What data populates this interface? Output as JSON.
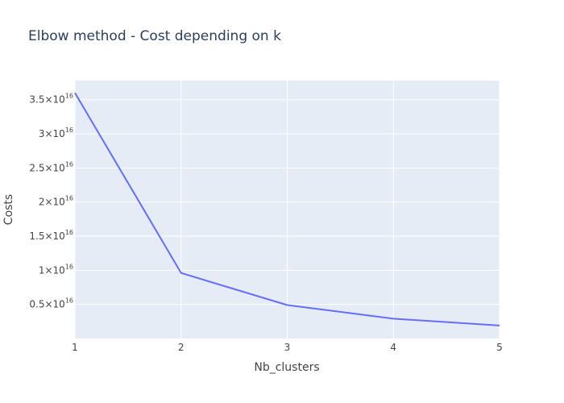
{
  "chart_data": {
    "type": "line",
    "title": "Elbow method - Cost depending on k",
    "xlabel": "Nb_clusters",
    "ylabel": "Costs",
    "x": [
      1,
      2,
      3,
      4,
      5
    ],
    "y": [
      3.6e+16,
      9600000000000000.0,
      4900000000000000.0,
      2900000000000000.0,
      1900000000000000.0
    ],
    "xlim": [
      1,
      5
    ],
    "ylim": [
      0.0,
      3.78e+16
    ],
    "x_ticks": [
      "1",
      "2",
      "3",
      "4",
      "5"
    ],
    "y_ticks": [
      {
        "value": 5000000000000000.0,
        "mantissa": "0.5×10",
        "exponent": "16"
      },
      {
        "value": 1e+16,
        "mantissa": "1×10",
        "exponent": "16"
      },
      {
        "value": 1.5e+16,
        "mantissa": "1.5×10",
        "exponent": "16"
      },
      {
        "value": 2e+16,
        "mantissa": "2×10",
        "exponent": "16"
      },
      {
        "value": 2.5e+16,
        "mantissa": "2.5×10",
        "exponent": "16"
      },
      {
        "value": 3e+16,
        "mantissa": "3×10",
        "exponent": "16"
      },
      {
        "value": 3.5e+16,
        "mantissa": "3.5×10",
        "exponent": "16"
      }
    ],
    "grid": true,
    "colors": {
      "plot_bg": "#e5ecf6",
      "grid": "#ffffff",
      "line": "#636efa"
    }
  }
}
